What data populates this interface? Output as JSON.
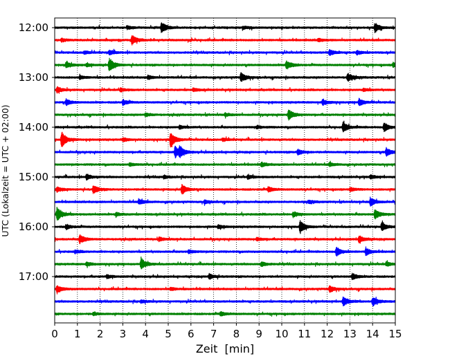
{
  "chart_data": {
    "type": "line",
    "title": "",
    "xlabel": "Zeit  [min]",
    "ylabel": "UTC (Lokalzeit = UTC + 02:00)",
    "xlim": [
      0,
      15
    ],
    "x_ticks": [
      "0",
      "1",
      "2",
      "3",
      "4",
      "5",
      "6",
      "7",
      "8",
      "9",
      "10",
      "11",
      "12",
      "13",
      "14",
      "15"
    ],
    "y_tick_labels": [
      "12:00",
      "13:00",
      "14:00",
      "15:00",
      "16:00",
      "17:00"
    ],
    "y_tick_row_index": [
      0,
      4,
      8,
      12,
      16,
      20
    ],
    "grid": {
      "x": true,
      "y": false,
      "style": "dotted"
    },
    "legend": "none",
    "trace_colors": [
      "#000000",
      "#ff0000",
      "#0000ff",
      "#008000"
    ],
    "traces": [
      {
        "start": "12:00",
        "color": "#000000",
        "events": [
          [
            4.7,
            1.0
          ],
          [
            14.1,
            0.8
          ],
          [
            3.2,
            0.25
          ],
          [
            8.3,
            0.22
          ]
        ]
      },
      {
        "start": "12:15",
        "color": "#ff0000",
        "events": [
          [
            3.4,
            0.8
          ],
          [
            0.3,
            0.3
          ],
          [
            11.6,
            0.25
          ]
        ]
      },
      {
        "start": "12:30",
        "color": "#0000ff",
        "events": [
          [
            2.4,
            0.4
          ],
          [
            12.1,
            0.5
          ],
          [
            13.3,
            0.35
          ],
          [
            1.3,
            0.25
          ]
        ]
      },
      {
        "start": "12:45",
        "color": "#008000",
        "events": [
          [
            2.4,
            1.2
          ],
          [
            0.5,
            0.5
          ],
          [
            10.2,
            0.8
          ],
          [
            14.9,
            0.45
          ],
          [
            1.4,
            0.25
          ]
        ]
      },
      {
        "start": "13:00",
        "color": "#000000",
        "events": [
          [
            8.2,
            0.8
          ],
          [
            12.9,
            0.75
          ],
          [
            4.1,
            0.3
          ],
          [
            1.1,
            0.3
          ]
        ]
      },
      {
        "start": "13:15",
        "color": "#ff0000",
        "events": [
          [
            0.1,
            0.5
          ],
          [
            6.1,
            0.25
          ],
          [
            2.9,
            0.3
          ],
          [
            13.6,
            0.25
          ]
        ]
      },
      {
        "start": "13:30",
        "color": "#0000ff",
        "events": [
          [
            0.5,
            0.5
          ],
          [
            3.0,
            0.45
          ],
          [
            11.8,
            0.5
          ],
          [
            13.4,
            0.6
          ]
        ]
      },
      {
        "start": "13:45",
        "color": "#008000",
        "events": [
          [
            10.3,
            0.9
          ],
          [
            4.0,
            0.3
          ],
          [
            7.5,
            0.25
          ]
        ]
      },
      {
        "start": "14:00",
        "color": "#000000",
        "events": [
          [
            12.7,
            0.85
          ],
          [
            14.5,
            0.75
          ],
          [
            5.5,
            0.3
          ],
          [
            8.9,
            0.25
          ]
        ]
      },
      {
        "start": "14:15",
        "color": "#ff0000",
        "events": [
          [
            0.3,
            1.4
          ],
          [
            5.1,
            1.3
          ],
          [
            3.0,
            0.3
          ],
          [
            7.4,
            0.25
          ]
        ]
      },
      {
        "start": "14:30",
        "color": "#0000ff",
        "events": [
          [
            5.3,
            1.0
          ],
          [
            5.5,
            0.7
          ],
          [
            14.6,
            0.7
          ],
          [
            10.7,
            0.5
          ]
        ]
      },
      {
        "start": "14:45",
        "color": "#008000",
        "events": [
          [
            9.1,
            0.35
          ],
          [
            3.3,
            0.25
          ],
          [
            12.1,
            0.3
          ]
        ]
      },
      {
        "start": "15:00",
        "color": "#000000",
        "events": [
          [
            1.4,
            0.45
          ],
          [
            8.5,
            0.35
          ],
          [
            13.9,
            0.3
          ],
          [
            4.8,
            0.25
          ]
        ]
      },
      {
        "start": "15:15",
        "color": "#ff0000",
        "events": [
          [
            1.7,
            0.7
          ],
          [
            5.6,
            0.85
          ],
          [
            0.1,
            0.4
          ],
          [
            9.4,
            0.45
          ],
          [
            13.0,
            0.35
          ]
        ]
      },
      {
        "start": "15:30",
        "color": "#0000ff",
        "events": [
          [
            13.9,
            0.75
          ],
          [
            3.7,
            0.45
          ],
          [
            6.6,
            0.3
          ],
          [
            11.2,
            0.25
          ]
        ]
      },
      {
        "start": "15:45",
        "color": "#008000",
        "events": [
          [
            0.1,
            1.2
          ],
          [
            14.1,
            0.85
          ],
          [
            10.5,
            0.45
          ],
          [
            2.7,
            0.3
          ]
        ]
      },
      {
        "start": "16:00",
        "color": "#000000",
        "events": [
          [
            10.8,
            1.0
          ],
          [
            14.4,
            0.7
          ],
          [
            0.5,
            0.4
          ],
          [
            7.2,
            0.3
          ]
        ]
      },
      {
        "start": "16:15",
        "color": "#ff0000",
        "events": [
          [
            1.1,
            0.75
          ],
          [
            13.4,
            0.6
          ],
          [
            4.6,
            0.3
          ],
          [
            8.9,
            0.25
          ]
        ]
      },
      {
        "start": "16:30",
        "color": "#0000ff",
        "events": [
          [
            12.4,
            0.75
          ],
          [
            13.7,
            0.6
          ],
          [
            5.9,
            0.3
          ],
          [
            0.9,
            0.25
          ]
        ]
      },
      {
        "start": "16:45",
        "color": "#008000",
        "events": [
          [
            3.8,
            1.0
          ],
          [
            1.4,
            0.35
          ],
          [
            9.1,
            0.4
          ],
          [
            14.6,
            0.35
          ]
        ]
      },
      {
        "start": "17:00",
        "color": "#000000",
        "events": [
          [
            13.1,
            0.55
          ],
          [
            6.8,
            0.45
          ],
          [
            2.3,
            0.3
          ]
        ]
      },
      {
        "start": "17:15",
        "color": "#ff0000",
        "events": [
          [
            0.1,
            0.65
          ],
          [
            12.1,
            0.55
          ],
          [
            5.1,
            0.25
          ]
        ]
      },
      {
        "start": "17:30",
        "color": "#0000ff",
        "events": [
          [
            12.7,
            0.75
          ],
          [
            14.0,
            0.8
          ],
          [
            3.8,
            0.25
          ]
        ]
      },
      {
        "start": "17:45",
        "color": "#008000",
        "events": [
          [
            7.3,
            0.35
          ],
          [
            1.7,
            0.25
          ]
        ]
      }
    ]
  }
}
